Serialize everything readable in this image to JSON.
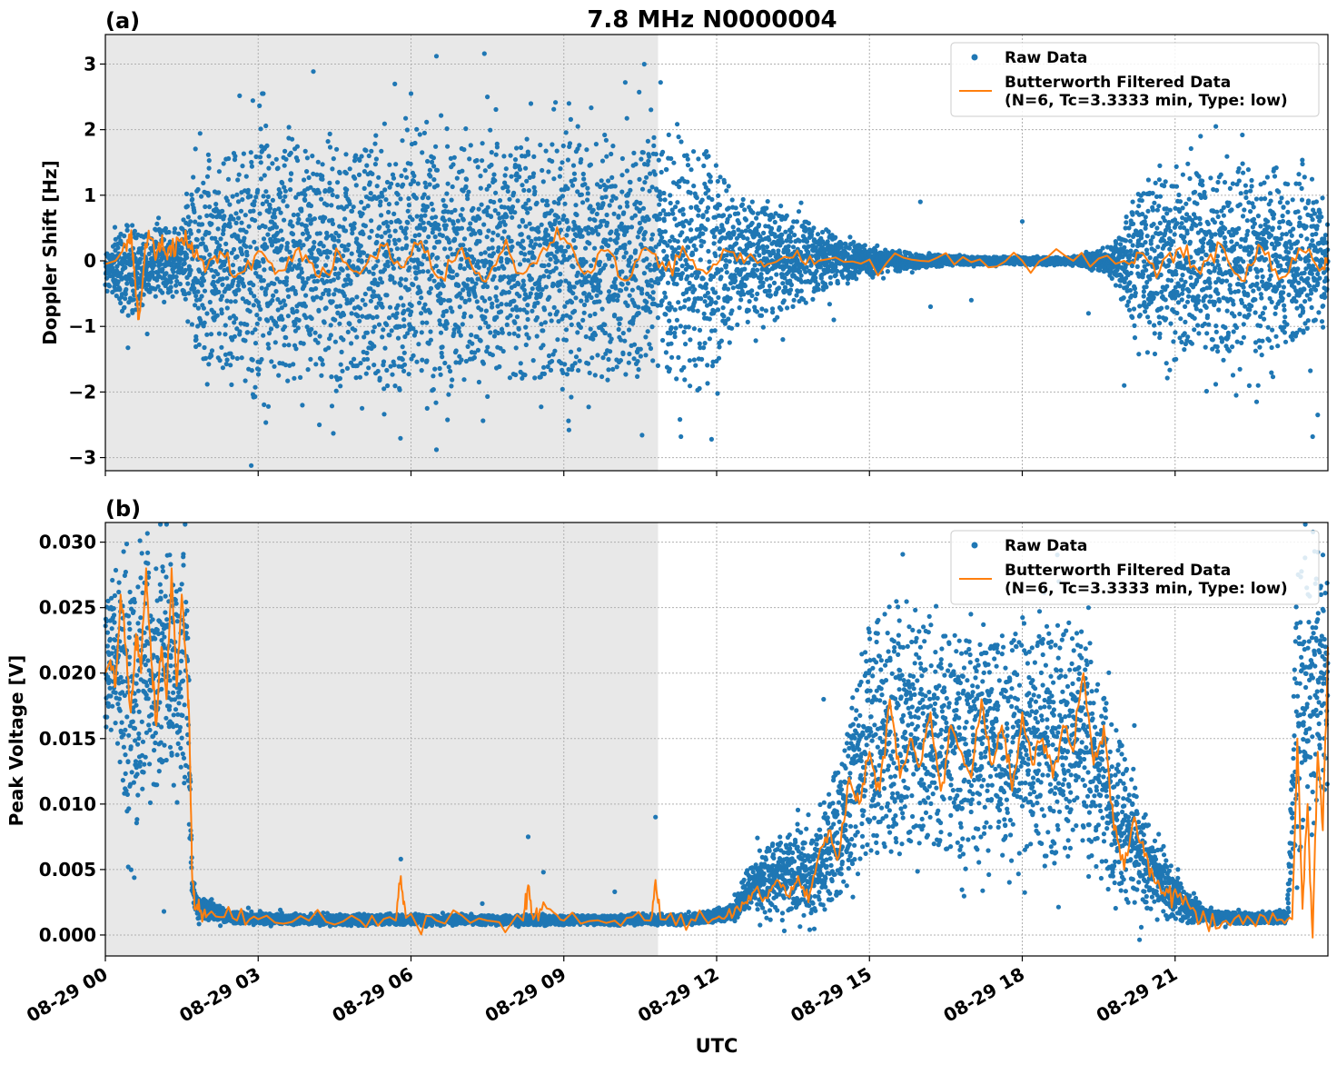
{
  "figure": {
    "title": "7.8 MHz N0000004",
    "xlabel": "UTC"
  },
  "chart_data": [
    {
      "panel": "(a)",
      "type": "scatter",
      "ylabel": "Doppler Shift [Hz]",
      "x_unit": "hours since 08-29 00 UTC",
      "xlim": [
        0,
        24
      ],
      "ylim": [
        -3.2,
        3.45
      ],
      "yticks": [
        -3,
        -2,
        -1,
        0,
        1,
        2,
        3
      ],
      "ytick_labels": [
        "−3",
        "−2",
        "−1",
        "0",
        "1",
        "2",
        "3"
      ],
      "xticks": [
        0,
        3,
        6,
        9,
        12,
        15,
        18,
        21
      ],
      "shaded_region": [
        0,
        10.85
      ],
      "grid": true,
      "legend": {
        "placement": "top-right",
        "entries": [
          "Raw Data",
          "Butterworth Filtered Data",
          "(N=6, Tc=3.3333 min, Type: low)"
        ]
      },
      "series": [
        {
          "name": "Raw Data",
          "kind": "points",
          "color": "#1f77b4",
          "envelope": {
            "x": [
              0.0,
              0.3,
              0.6,
              0.9,
              1.2,
              1.5,
              1.7,
              2.0,
              3.0,
              4.0,
              5.0,
              6.0,
              7.0,
              8.0,
              9.0,
              10.0,
              11.0,
              12.0,
              12.4,
              13.0,
              13.5,
              14.0,
              14.5,
              15.0,
              16.0,
              17.0,
              18.0,
              19.0,
              19.8,
              20.2,
              21.0,
              22.0,
              22.5,
              23.0,
              23.5,
              24.0
            ],
            "high": [
              0.15,
              0.45,
              0.5,
              0.5,
              0.5,
              0.5,
              1.4,
              1.6,
              1.75,
              1.8,
              1.8,
              1.8,
              1.8,
              1.8,
              1.8,
              1.8,
              1.75,
              1.6,
              0.9,
              0.8,
              0.7,
              0.5,
              0.3,
              0.2,
              0.1,
              0.06,
              0.05,
              0.06,
              0.2,
              1.0,
              1.3,
              1.4,
              1.5,
              1.3,
              1.2,
              0.6
            ],
            "low": [
              -0.3,
              -0.7,
              -0.85,
              -0.5,
              -0.5,
              -0.4,
              -1.3,
              -1.6,
              -1.75,
              -1.8,
              -1.8,
              -1.8,
              -1.8,
              -1.8,
              -1.8,
              -1.8,
              -1.75,
              -1.6,
              -0.9,
              -0.8,
              -0.7,
              -0.5,
              -0.3,
              -0.2,
              -0.1,
              -0.06,
              -0.05,
              -0.06,
              -0.2,
              -1.0,
              -1.3,
              -1.4,
              -1.5,
              -1.3,
              -1.2,
              -0.6
            ]
          },
          "outliers": [
            {
              "x": 6.5,
              "y": 3.12
            },
            {
              "x": 10.9,
              "y": 2.72
            },
            {
              "x": 3.1,
              "y": 2.55
            },
            {
              "x": 6.0,
              "y": 2.55
            },
            {
              "x": 7.5,
              "y": 2.5
            },
            {
              "x": 9.1,
              "y": 2.4
            },
            {
              "x": 6.5,
              "y": -2.88
            },
            {
              "x": 9.1,
              "y": -2.58
            },
            {
              "x": 11.3,
              "y": -2.68
            },
            {
              "x": 11.9,
              "y": -2.72
            },
            {
              "x": 23.7,
              "y": -2.68
            },
            {
              "x": 23.8,
              "y": -2.35
            },
            {
              "x": 4.2,
              "y": -2.5
            },
            {
              "x": 3.2,
              "y": -2.22
            },
            {
              "x": 12.7,
              "y": 0.9
            },
            {
              "x": 16.0,
              "y": 0.9
            },
            {
              "x": 18.0,
              "y": 0.6
            },
            {
              "x": 21.5,
              "y": 1.9
            },
            {
              "x": 21.8,
              "y": 2.05
            },
            {
              "x": 16.2,
              "y": -0.7
            },
            {
              "x": 17.0,
              "y": -0.6
            },
            {
              "x": 19.3,
              "y": -0.8
            },
            {
              "x": 20.0,
              "y": -1.9
            },
            {
              "x": 22.2,
              "y": -2.05
            },
            {
              "x": 22.6,
              "y": -2.15
            },
            {
              "x": 13.3,
              "y": -1.2
            },
            {
              "x": 14.3,
              "y": -0.9
            },
            {
              "x": 20.7,
              "y": 1.45
            }
          ]
        },
        {
          "name": "Butterworth Filtered Data",
          "kind": "line",
          "color": "#ff7f0e",
          "x": [
            0.0,
            0.2,
            0.4,
            0.5,
            0.55,
            0.6,
            0.65,
            0.7,
            0.8,
            0.9,
            1.0,
            1.1,
            1.2,
            1.3,
            1.45,
            1.6,
            1.75,
            2.0,
            2.3,
            2.6,
            3.0,
            3.4,
            3.8,
            4.2,
            4.6,
            5.0,
            5.4,
            5.8,
            6.2,
            6.6,
            7.0,
            7.4,
            7.8,
            8.2,
            8.6,
            9.0,
            9.4,
            9.8,
            10.2,
            10.6,
            11.0,
            11.4,
            11.8,
            12.2,
            12.6,
            13.0,
            13.5,
            14.0,
            15.0,
            16.0,
            17.0,
            18.0,
            19.0,
            20.0,
            20.3,
            20.7,
            21.1,
            21.5,
            21.9,
            22.3,
            22.7,
            23.1,
            23.5,
            23.9,
            24.0
          ],
          "y": [
            -0.05,
            0.0,
            0.25,
            0.4,
            0.1,
            -0.55,
            -0.82,
            -0.6,
            0.2,
            0.35,
            0.05,
            0.3,
            0.1,
            0.2,
            0.3,
            0.3,
            0.05,
            -0.1,
            0.1,
            -0.2,
            0.15,
            -0.15,
            0.2,
            -0.25,
            0.1,
            -0.2,
            0.25,
            -0.1,
            0.3,
            -0.25,
            0.2,
            -0.3,
            0.15,
            -0.2,
            0.2,
            0.35,
            -0.2,
            0.15,
            -0.3,
            0.2,
            -0.15,
            0.1,
            -0.2,
            0.15,
            0.05,
            -0.05,
            0.05,
            0.0,
            0.02,
            0.0,
            -0.02,
            0.0,
            0.0,
            0.0,
            0.12,
            -0.15,
            0.2,
            -0.2,
            0.25,
            -0.3,
            0.2,
            -0.25,
            0.15,
            -0.1,
            0.05
          ]
        }
      ]
    },
    {
      "panel": "(b)",
      "type": "scatter",
      "ylabel": "Peak Voltage [V]",
      "x_unit": "hours since 08-29 00 UTC",
      "xlim": [
        0,
        24
      ],
      "ylim": [
        -0.0016,
        0.0315
      ],
      "yticks": [
        0.0,
        0.005,
        0.01,
        0.015,
        0.02,
        0.025,
        0.03
      ],
      "ytick_labels": [
        "0.000",
        "0.005",
        "0.010",
        "0.015",
        "0.020",
        "0.025",
        "0.030"
      ],
      "xticks": [
        0,
        3,
        6,
        9,
        12,
        15,
        18,
        21
      ],
      "xtick_labels": [
        "08-29 00",
        "08-29 03",
        "08-29 06",
        "08-29 09",
        "08-29 12",
        "08-29 15",
        "08-29 18",
        "08-29 21"
      ],
      "shaded_region": [
        0,
        10.85
      ],
      "grid": true,
      "legend": {
        "placement": "top-right",
        "entries": [
          "Raw Data",
          "Butterworth Filtered Data",
          "(N=6, Tc=3.3333 min, Type: low)"
        ]
      },
      "series": [
        {
          "name": "Raw Data",
          "kind": "points",
          "color": "#1f77b4",
          "envelope": {
            "x": [
              0.0,
              0.2,
              0.4,
              0.6,
              0.8,
              1.0,
              1.2,
              1.4,
              1.6,
              1.7,
              1.8,
              2.5,
              4.0,
              6.0,
              8.0,
              10.0,
              11.5,
              12.3,
              12.6,
              13.0,
              13.5,
              14.0,
              14.5,
              15.0,
              15.5,
              16.0,
              17.0,
              18.0,
              19.0,
              19.5,
              20.0,
              20.4,
              20.8,
              21.2,
              21.6,
              22.5,
              23.2,
              23.4,
              23.6,
              24.0
            ],
            "low": [
              0.015,
              0.015,
              0.009,
              0.007,
              0.012,
              0.01,
              0.012,
              0.01,
              0.012,
              0.003,
              0.0013,
              0.0009,
              0.0008,
              0.0008,
              0.0008,
              0.0008,
              0.0008,
              0.0012,
              0.0015,
              0.0017,
              0.0017,
              0.0016,
              0.003,
              0.006,
              0.006,
              0.007,
              0.006,
              0.006,
              0.006,
              0.005,
              0.004,
              0.002,
              0.0015,
              0.001,
              0.0009,
              0.0009,
              0.0009,
              0.004,
              0.008,
              0.012
            ],
            "high": [
              0.025,
              0.028,
              0.029,
              0.026,
              0.03,
              0.028,
              0.03,
              0.028,
              0.03,
              0.005,
              0.003,
              0.0018,
              0.0015,
              0.0015,
              0.0015,
              0.0015,
              0.0016,
              0.0022,
              0.005,
              0.0065,
              0.008,
              0.008,
              0.015,
              0.024,
              0.0245,
              0.024,
              0.023,
              0.023,
              0.024,
              0.02,
              0.014,
              0.009,
              0.006,
              0.0035,
              0.002,
              0.0016,
              0.0018,
              0.028,
              0.029,
              0.027
            ]
          },
          "outliers": [
            {
              "x": 0.45,
              "y": 0.0052
            },
            {
              "x": 1.15,
              "y": 0.0018
            },
            {
              "x": 5.8,
              "y": 0.0058
            },
            {
              "x": 8.3,
              "y": 0.0075
            },
            {
              "x": 8.6,
              "y": 0.0048
            },
            {
              "x": 10.8,
              "y": 0.009
            },
            {
              "x": 10.0,
              "y": 0.0033
            },
            {
              "x": 7.4,
              "y": 0.0024
            },
            {
              "x": 14.1,
              "y": 0.018
            },
            {
              "x": 15.3,
              "y": 0.0245
            },
            {
              "x": 19.3,
              "y": 0.025
            },
            {
              "x": 20.2,
              "y": 0.016
            },
            {
              "x": 23.55,
              "y": 0.0288
            },
            {
              "x": 23.85,
              "y": 0.0265
            }
          ]
        },
        {
          "name": "Butterworth Filtered Data",
          "kind": "line",
          "color": "#ff7f0e",
          "x": [
            0.0,
            0.1,
            0.2,
            0.3,
            0.4,
            0.5,
            0.6,
            0.7,
            0.8,
            0.9,
            1.0,
            1.1,
            1.2,
            1.3,
            1.4,
            1.5,
            1.6,
            1.65,
            1.7,
            1.75,
            1.85,
            2.0,
            2.5,
            3.0,
            4.0,
            5.0,
            5.7,
            5.8,
            5.9,
            6.5,
            7.5,
            8.2,
            8.3,
            8.4,
            8.6,
            9.0,
            10.0,
            10.7,
            10.8,
            10.9,
            11.5,
            12.0,
            12.3,
            12.5,
            12.7,
            13.0,
            13.2,
            13.4,
            13.6,
            13.8,
            14.0,
            14.2,
            14.4,
            14.6,
            14.8,
            15.0,
            15.2,
            15.4,
            15.6,
            15.8,
            16.0,
            16.2,
            16.4,
            16.6,
            16.8,
            17.0,
            17.2,
            17.4,
            17.6,
            17.8,
            18.0,
            18.2,
            18.4,
            18.6,
            18.8,
            19.0,
            19.2,
            19.4,
            19.6,
            19.8,
            20.0,
            20.2,
            20.4,
            20.6,
            20.8,
            21.0,
            21.3,
            21.6,
            22.0,
            22.5,
            23.0,
            23.3,
            23.4,
            23.5,
            23.6,
            23.7,
            23.8,
            23.9,
            24.0
          ],
          "y": [
            0.02,
            0.021,
            0.019,
            0.026,
            0.022,
            0.017,
            0.023,
            0.02,
            0.028,
            0.021,
            0.016,
            0.022,
            0.018,
            0.028,
            0.019,
            0.026,
            0.02,
            0.016,
            0.005,
            0.002,
            0.0018,
            0.0015,
            0.0013,
            0.0012,
            0.0011,
            0.0011,
            0.0011,
            0.0045,
            0.0013,
            0.0011,
            0.0011,
            0.0011,
            0.0038,
            0.0012,
            0.0025,
            0.0011,
            0.0011,
            0.0011,
            0.0042,
            0.0012,
            0.0012,
            0.0013,
            0.0013,
            0.0025,
            0.0032,
            0.0028,
            0.0042,
            0.003,
            0.0045,
            0.0025,
            0.006,
            0.008,
            0.006,
            0.012,
            0.01,
            0.014,
            0.011,
            0.018,
            0.012,
            0.015,
            0.013,
            0.017,
            0.011,
            0.016,
            0.014,
            0.012,
            0.018,
            0.013,
            0.016,
            0.011,
            0.017,
            0.013,
            0.015,
            0.012,
            0.016,
            0.014,
            0.02,
            0.013,
            0.016,
            0.008,
            0.005,
            0.009,
            0.006,
            0.004,
            0.003,
            0.0035,
            0.002,
            0.0012,
            0.0011,
            0.0011,
            0.0011,
            0.0012,
            0.015,
            0.002,
            0.01,
            -0.0002,
            0.014,
            0.008,
            0.022
          ]
        }
      ]
    }
  ]
}
